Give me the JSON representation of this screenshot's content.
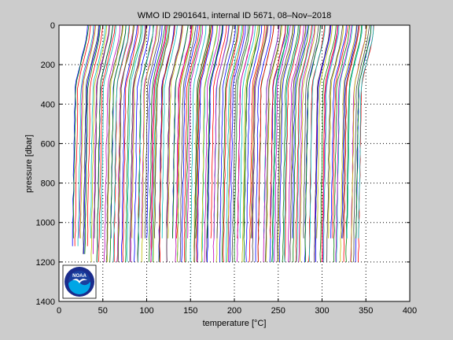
{
  "chart_data": {
    "type": "line",
    "title": "WMO ID 2901641, internal ID 5671, 08–Nov–2018",
    "xlabel": "temperature [°C]",
    "ylabel": "pressure [dbar]",
    "xlim": [
      0,
      400
    ],
    "ylim": [
      0,
      1400
    ],
    "y_reversed": true,
    "grid": true,
    "x_ticks": [
      "0",
      "50",
      "100",
      "150",
      "200",
      "250",
      "300",
      "350",
      "400"
    ],
    "y_ticks": [
      "0",
      "200",
      "400",
      "600",
      "800",
      "1000",
      "1200",
      "1400"
    ],
    "profile_shape": {
      "note_on_offsets": "Profiles plotted with successive horizontal offsets of about 2 units each",
      "count": 165,
      "first_offset": 10,
      "offset_step": 2,
      "max_pressure": 1200,
      "colors": [
        "#0000ff",
        "#008000",
        "#ff0000",
        "#00bfbf",
        "#bf00bf",
        "#bfbf00",
        "#404040"
      ]
    }
  },
  "logo": {
    "text": "NOAA",
    "colors": {
      "outer": "#ffffff",
      "ring": "#1a2c8c",
      "sky": "#1a3f9f",
      "water": "#00a6e6"
    }
  }
}
